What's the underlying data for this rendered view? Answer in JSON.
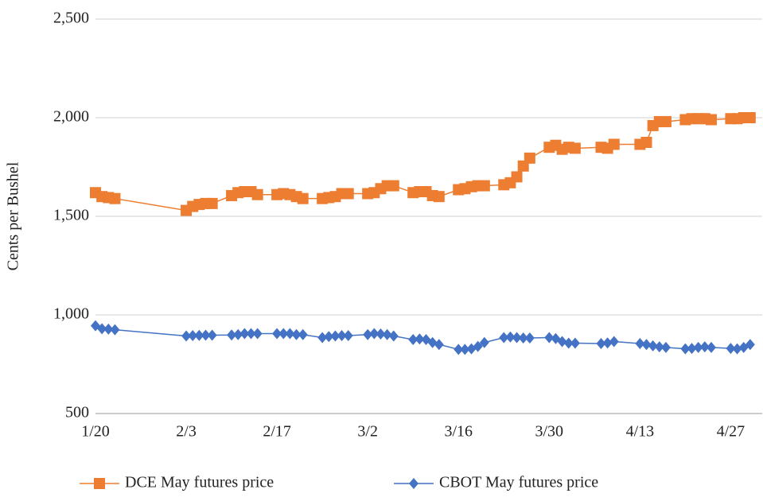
{
  "chart_data": {
    "type": "line",
    "y_label": "Cents per Bushel",
    "x": [
      "1/20",
      "1/21",
      "1/22",
      "1/23",
      "2/3",
      "2/4",
      "2/5",
      "2/6",
      "2/7",
      "2/10",
      "2/11",
      "2/12",
      "2/13",
      "2/14",
      "2/17",
      "2/18",
      "2/19",
      "2/20",
      "2/21",
      "2/24",
      "2/25",
      "2/26",
      "2/27",
      "2/28",
      "3/2",
      "3/3",
      "3/4",
      "3/5",
      "3/6",
      "3/9",
      "3/10",
      "3/11",
      "3/12",
      "3/13",
      "3/16",
      "3/17",
      "3/18",
      "3/19",
      "3/20",
      "3/23",
      "3/24",
      "3/25",
      "3/26",
      "3/27",
      "3/30",
      "3/31",
      "4/1",
      "4/2",
      "4/3",
      "4/7",
      "4/8",
      "4/9",
      "4/13",
      "4/14",
      "4/15",
      "4/16",
      "4/17",
      "4/20",
      "4/21",
      "4/22",
      "4/23",
      "4/24",
      "4/27",
      "4/28",
      "4/29",
      "4/30"
    ],
    "series": [
      {
        "name": "DCE May futures price",
        "color": "#ED7D31",
        "marker": "square",
        "values": [
          1620,
          1600,
          1595,
          1590,
          1530,
          1550,
          1560,
          1565,
          1565,
          1605,
          1620,
          1625,
          1625,
          1610,
          1610,
          1615,
          1610,
          1600,
          1590,
          1590,
          1595,
          1600,
          1615,
          1615,
          1615,
          1620,
          1640,
          1655,
          1655,
          1620,
          1625,
          1625,
          1605,
          1600,
          1635,
          1640,
          1650,
          1655,
          1655,
          1660,
          1670,
          1700,
          1755,
          1795,
          1850,
          1860,
          1840,
          1850,
          1845,
          1850,
          1845,
          1865,
          1865,
          1875,
          1960,
          1980,
          1980,
          1990,
          1995,
          1995,
          1995,
          1990,
          1995,
          1995,
          2000,
          2000
        ]
      },
      {
        "name": "CBOT May futures price",
        "color": "#4472C4",
        "marker": "diamond",
        "values": [
          945,
          930,
          928,
          925,
          893,
          895,
          896,
          897,
          897,
          898,
          900,
          905,
          905,
          905,
          905,
          905,
          905,
          900,
          900,
          885,
          890,
          893,
          895,
          895,
          900,
          905,
          903,
          900,
          893,
          875,
          878,
          875,
          860,
          850,
          825,
          825,
          828,
          840,
          860,
          885,
          888,
          885,
          883,
          883,
          885,
          880,
          865,
          857,
          857,
          855,
          858,
          865,
          855,
          850,
          843,
          838,
          835,
          828,
          830,
          835,
          838,
          835,
          830,
          828,
          835,
          850
        ]
      }
    ],
    "xlim": [
      "1/20",
      "5/1"
    ],
    "xticks": [
      "1/20",
      "2/3",
      "2/17",
      "3/2",
      "3/16",
      "3/30",
      "4/13",
      "4/27"
    ],
    "ylim": [
      500,
      2500
    ],
    "yticks": [
      500,
      {
        "value": 1000,
        "label": "1,000"
      },
      {
        "value": 1500,
        "label": "1,500"
      },
      {
        "value": 2000,
        "label": "2,000"
      },
      {
        "value": 2500,
        "label": "2,500"
      }
    ],
    "grid": true,
    "legend": "bottom"
  }
}
